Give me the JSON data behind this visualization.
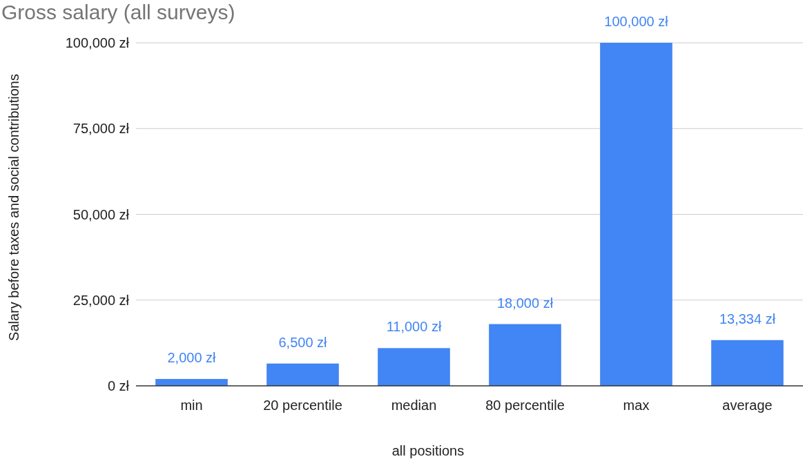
{
  "chart_data": {
    "type": "bar",
    "title": "Gross salary (all surveys)",
    "xlabel": "all positions",
    "ylabel": "Salary before taxes and social contributions",
    "categories": [
      "min",
      "20 percentile",
      "median",
      "80 percentile",
      "max",
      "average"
    ],
    "values": [
      2000,
      6500,
      11000,
      18000,
      100000,
      13334
    ],
    "value_labels": [
      "2,000 zł",
      "6,500 zł",
      "11,000 zł",
      "18,000 zł",
      "100,000 zł",
      "13,334 zł"
    ],
    "color": "#4285f4",
    "ylim": [
      0,
      100000
    ],
    "yticks": [
      {
        "value": 0,
        "label": "0 zł"
      },
      {
        "value": 25000,
        "label": "25,000 zł"
      },
      {
        "value": 50000,
        "label": "50,000 zł"
      },
      {
        "value": 75000,
        "label": "75,000 zł"
      },
      {
        "value": 100000,
        "label": "100,000 zł"
      }
    ],
    "grid": "y"
  }
}
